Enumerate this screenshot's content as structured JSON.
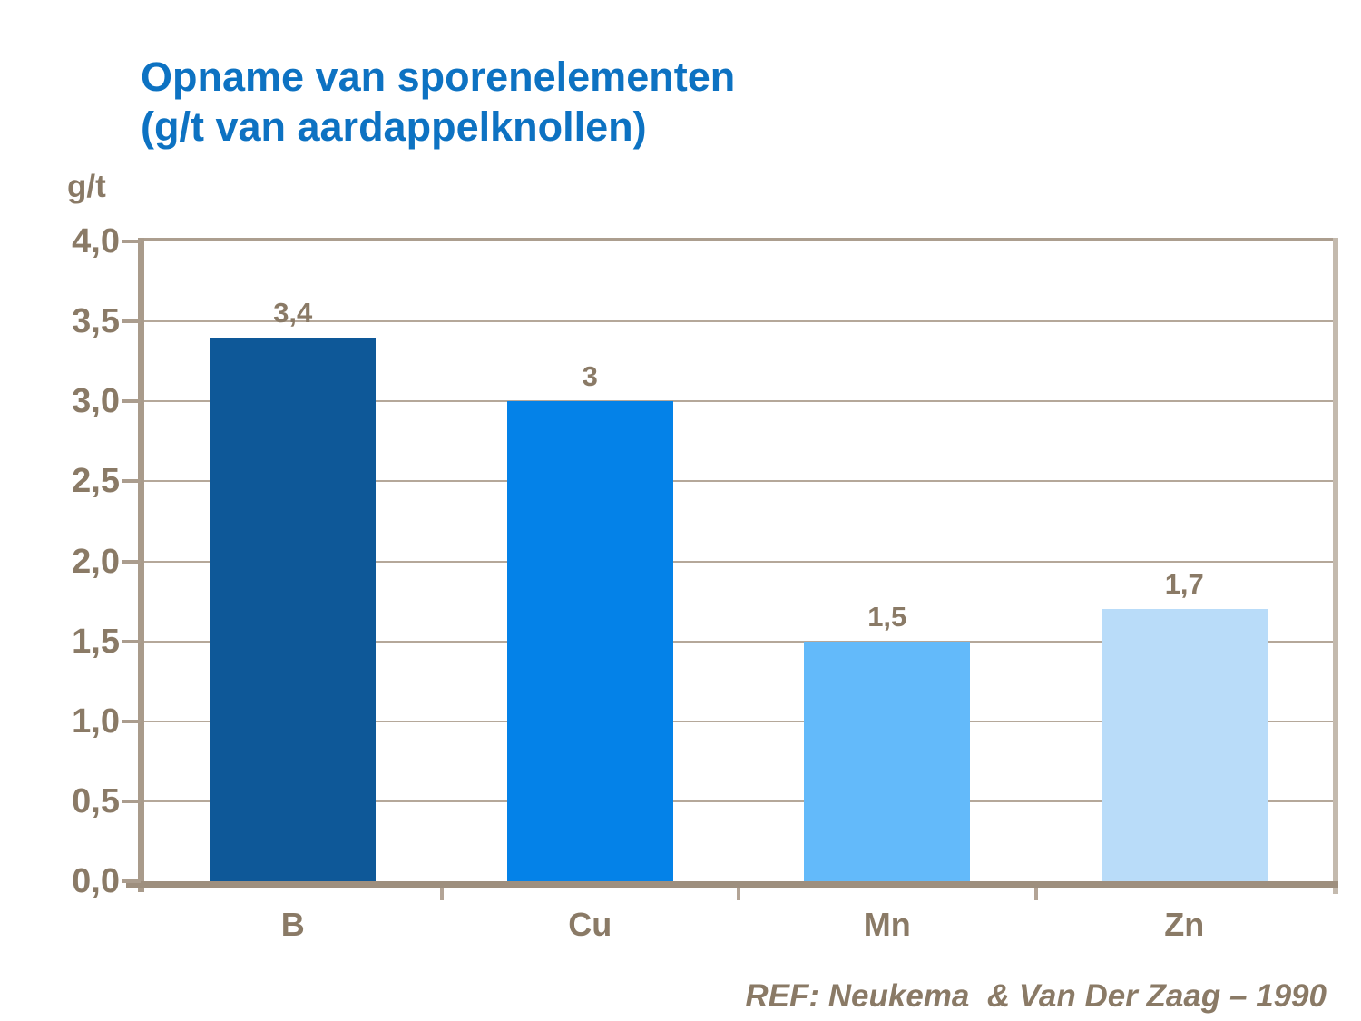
{
  "title": {
    "line1": "Opname van sporenelementen",
    "line2": "(g/t van aardappelknollen)"
  },
  "y_unit_label": "g/t",
  "reference": "REF: Neukema  & Van Der Zaag – 1990",
  "colors": {
    "title_text": "#0D72C2",
    "axis_text": "#8A7A66",
    "axis_line": "#9E8F7E",
    "gridline": "#B5A89A"
  },
  "chart_data": {
    "type": "bar",
    "title": "Opname van sporenelementen (g/t van aardappelknollen)",
    "categories": [
      "B",
      "Cu",
      "Mn",
      "Zn"
    ],
    "values": [
      3.4,
      3,
      1.5,
      1.7
    ],
    "value_labels": [
      "3,4",
      "3",
      "1,5",
      "1,7"
    ],
    "bar_colors": [
      "#0E5898",
      "#0482E8",
      "#63BAFA",
      "#B9DCF9"
    ],
    "xlabel": "",
    "ylabel": "g/t",
    "ylim": [
      0,
      4
    ],
    "ytick_step": 0.5,
    "ytick_labels": [
      "0,0",
      "0,5",
      "1,0",
      "1,5",
      "2,0",
      "2,5",
      "3,0",
      "3,5",
      "4,0"
    ],
    "grid": true,
    "legend": false
  }
}
